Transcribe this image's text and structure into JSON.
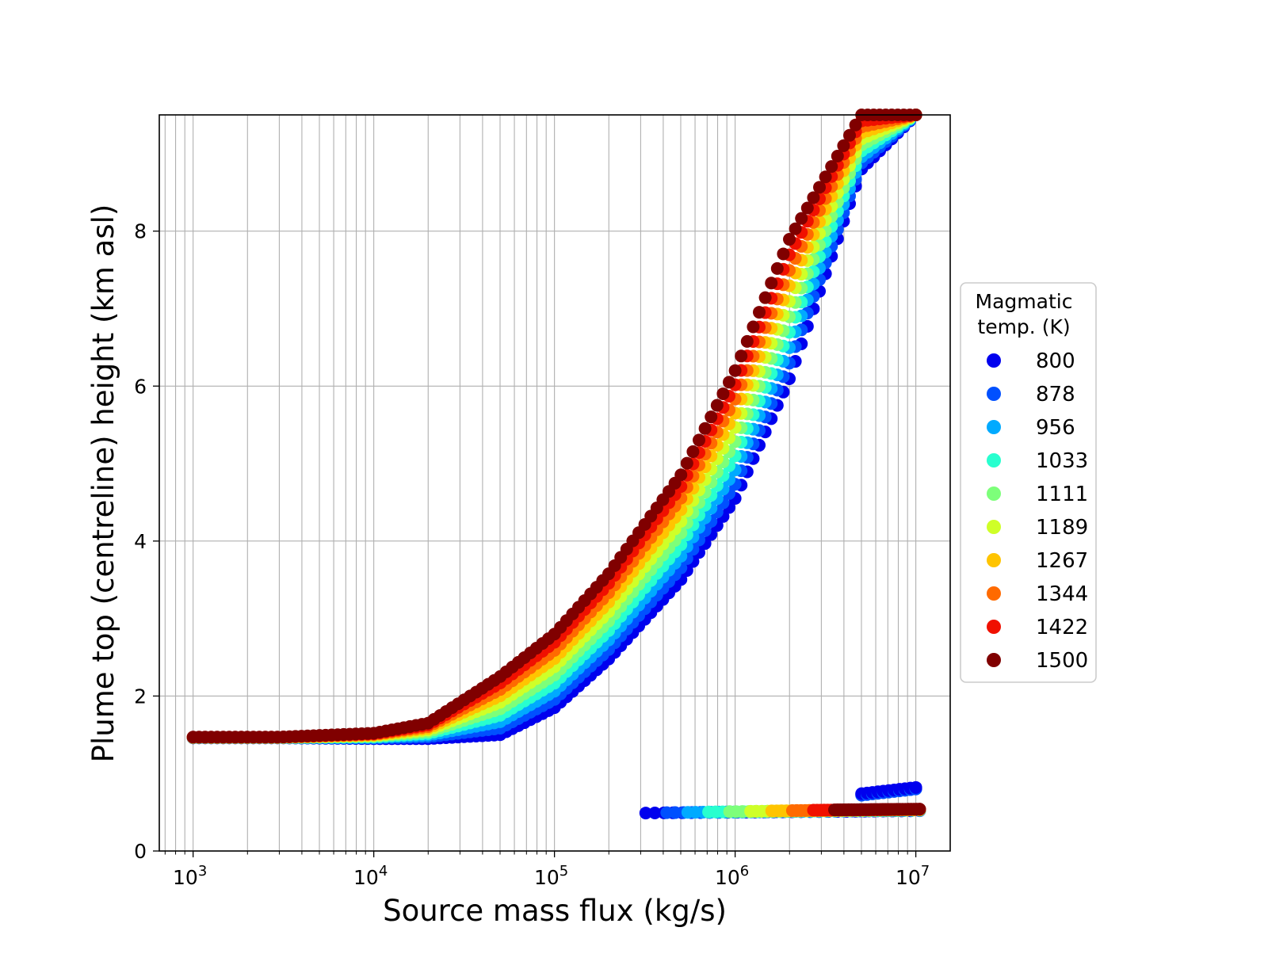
{
  "chart_data": {
    "type": "scatter",
    "xlabel": "Source mass flux (kg/s)",
    "ylabel": "Plume top (centreline) height (km asl)",
    "xscale": "log",
    "xlim": [
      650,
      15500000
    ],
    "ylim": [
      0,
      9.5
    ],
    "x_ticks": [
      {
        "value": 1000,
        "base": "10",
        "exp": "3"
      },
      {
        "value": 10000,
        "base": "10",
        "exp": "4"
      },
      {
        "value": 100000,
        "base": "10",
        "exp": "5"
      },
      {
        "value": 1000000,
        "base": "10",
        "exp": "6"
      },
      {
        "value": 10000000,
        "base": "10",
        "exp": "7"
      }
    ],
    "y_ticks": [
      0,
      2,
      4,
      6,
      8
    ],
    "grid": "major and minor on x, major on y",
    "legend": {
      "title_line1": "Magmatic",
      "title_line2": "temp. (K)",
      "placement": "right, outside plot"
    },
    "colormap": "jet",
    "series": [
      {
        "name": "800",
        "color": "#0000ee",
        "T": 800
      },
      {
        "name": "878",
        "color": "#0050ff",
        "T": 878
      },
      {
        "name": "956",
        "color": "#00aaff",
        "T": 956
      },
      {
        "name": "1033",
        "color": "#28ffcf",
        "T": 1033
      },
      {
        "name": "1111",
        "color": "#7dff7a",
        "T": 1111
      },
      {
        "name": "1189",
        "color": "#cfff28",
        "T": 1189
      },
      {
        "name": "1267",
        "color": "#ffc400",
        "T": 1267
      },
      {
        "name": "1344",
        "color": "#ff6a00",
        "T": 1344
      },
      {
        "name": "1422",
        "color": "#f01000",
        "T": 1422
      },
      {
        "name": "1500",
        "color": "#800000",
        "T": 1500
      }
    ],
    "main_branch": {
      "flux": [
        1000,
        3000,
        10000,
        20000,
        50000,
        100000,
        200000,
        500000,
        1000000,
        2000000,
        5000000,
        10000000
      ],
      "height_by_temp": {
        "800": [
          1.46,
          1.46,
          1.45,
          1.45,
          1.5,
          1.85,
          2.48,
          3.5,
          4.55,
          6.1,
          8.8,
          9.5
        ],
        "1500": [
          1.47,
          1.47,
          1.52,
          1.65,
          2.25,
          2.8,
          3.58,
          4.85,
          6.2,
          7.9,
          9.5,
          9.5
        ]
      }
    },
    "lower_branch": {
      "flux_range": [
        320000,
        10500000
      ],
      "height_range": [
        0.45,
        0.8
      ]
    }
  }
}
